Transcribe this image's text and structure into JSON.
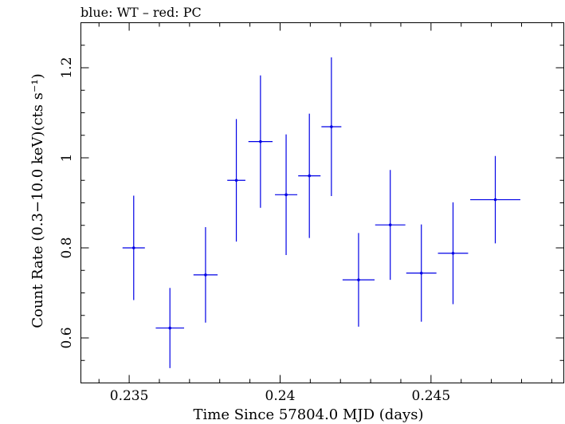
{
  "top_label": "blue: WT – red: PC",
  "chart_data": {
    "type": "scatter",
    "xlabel": "Time Since 57804.0 MJD (days)",
    "ylabel": "Count Rate (0.3−10.0 keV)(cts s⁻¹)",
    "xlim": [
      0.2334,
      0.2494
    ],
    "ylim": [
      0.5,
      1.3
    ],
    "x_ticks": [
      {
        "value": 0.235,
        "label": "0.235"
      },
      {
        "value": 0.24,
        "label": "0.24"
      },
      {
        "value": 0.245,
        "label": "0.245"
      }
    ],
    "y_ticks": [
      {
        "value": 0.6,
        "label": "0.6"
      },
      {
        "value": 0.8,
        "label": "0.8"
      },
      {
        "value": 1.0,
        "label": "1"
      },
      {
        "value": 1.2,
        "label": "1.2"
      }
    ],
    "grid": false,
    "series": [
      {
        "color": "#0000e6",
        "points": [
          {
            "x": 0.23515,
            "xerr": 0.00037,
            "y": 0.8,
            "yerr": 0.116
          },
          {
            "x": 0.23635,
            "xerr": 0.00047,
            "y": 0.622,
            "yerr": 0.089
          },
          {
            "x": 0.23753,
            "xerr": 0.0004,
            "y": 0.74,
            "yerr": 0.106
          },
          {
            "x": 0.23855,
            "xerr": 0.0003,
            "y": 0.95,
            "yerr": 0.136
          },
          {
            "x": 0.23935,
            "xerr": 0.0004,
            "y": 1.036,
            "yerr": 0.147
          },
          {
            "x": 0.2402,
            "xerr": 0.00037,
            "y": 0.918,
            "yerr": 0.134
          },
          {
            "x": 0.24097,
            "xerr": 0.00037,
            "y": 0.96,
            "yerr": 0.138
          },
          {
            "x": 0.2417,
            "xerr": 0.00033,
            "y": 1.069,
            "yerr": 0.154
          },
          {
            "x": 0.2426,
            "xerr": 0.00053,
            "y": 0.729,
            "yerr": 0.104
          },
          {
            "x": 0.24365,
            "xerr": 0.0005,
            "y": 0.851,
            "yerr": 0.122
          },
          {
            "x": 0.24468,
            "xerr": 0.0005,
            "y": 0.744,
            "yerr": 0.108
          },
          {
            "x": 0.24573,
            "xerr": 0.0005,
            "y": 0.788,
            "yerr": 0.113
          },
          {
            "x": 0.24713,
            "xerr": 0.00083,
            "y": 0.907,
            "yerr": 0.097
          }
        ]
      }
    ]
  }
}
